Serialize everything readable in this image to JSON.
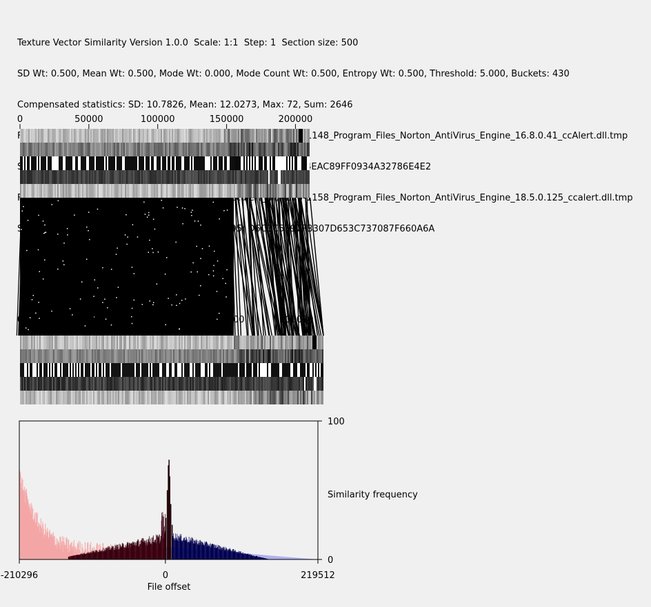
{
  "header": {
    "line1": "Texture Vector Similarity Version 1.0.0  Scale: 1:1  Step: 1  Section size: 500",
    "line2": "SD Wt: 0.500, Mean Wt: 0.500, Mode Wt: 0.000, Mode Count Wt: 0.500, Entropy Wt: 0.500, Threshold: 5.000, Buckets: 430",
    "line3": "Compensated statistics: SD: 10.7826, Mean: 12.0273, Max: 72, Sum: 2646",
    "line4": "File 1: /smallwork/bdallen/executable_files_500/ccalert_dll/AE10-1148_Program_Files_Norton_AntiVirus_Engine_16.8.0.41_ccAlert.dll.tmp",
    "line5": "Size: 210296 Modtime: 2010-01-20 14:03:36 MD5: CD826F4F614EAC89FF0934A32786E4E2",
    "line6": "File 2: /smallwork/bdallen/executable_files_500/ccalert_dll/AE10-1158_Program_Files_Norton_AntiVirus_Engine_18.5.0.125_ccalert.dll.tmp",
    "line7": "Size: 219512 Modtime: 2010-11-24 06:21:11 MD5: D6C3C5E97FB307D653C737087F660A6A"
  },
  "colors": {
    "background": "#f0f0f0",
    "file1_distribution": "#f4a6a6",
    "file2_distribution": "#a8a8ee",
    "positive_offsets": "#000050",
    "negative_offsets": "#3a0010"
  },
  "chart_data": [
    {
      "type": "heatmap",
      "name": "file 1 texture bands",
      "x_ticks": [
        0,
        50000,
        100000,
        150000,
        200000
      ],
      "x_tick_labels": [
        "0",
        "50000",
        "100000",
        "150000",
        "200000"
      ],
      "xlim": [
        0,
        210296
      ],
      "bands": 5
    },
    {
      "type": "line",
      "name": "section match lines between file 1 and file 2",
      "x_ticks": [
        0,
        50000,
        100000,
        150000,
        200000
      ],
      "x_tick_labels": [
        "0",
        "50000",
        "100000",
        "150000",
        "200000"
      ]
    },
    {
      "type": "heatmap",
      "name": "file 2 texture bands",
      "xlim": [
        0,
        219512
      ],
      "bands": 5
    },
    {
      "type": "bar",
      "xlabel": "File offset",
      "ylabel": "Similarity frequency",
      "xlim": [
        -210296,
        219512
      ],
      "ylim": [
        0,
        100
      ],
      "x_tick_labels": [
        "-210296",
        "0",
        "219512"
      ],
      "y_tick_labels": [
        "0",
        "100"
      ],
      "peak": {
        "x": 4500,
        "y": 72
      }
    }
  ]
}
